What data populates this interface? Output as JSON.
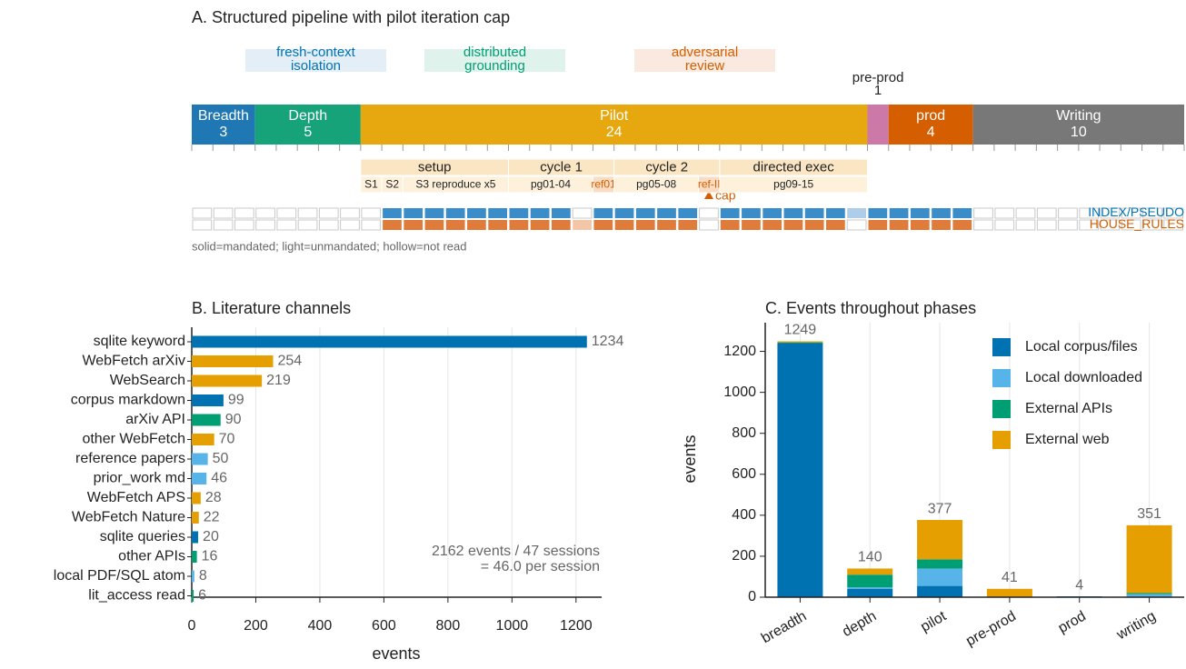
{
  "chart_data": [
    {
      "type": "timeline",
      "title": "A. Structured pipeline with pilot iteration cap",
      "annotations": [
        {
          "lines": [
            "fresh-context",
            "isolation"
          ],
          "color": "#0072b2",
          "fill": "#e3eef6"
        },
        {
          "lines": [
            "distributed",
            "grounding"
          ],
          "color": "#009e73",
          "fill": "#e0f2ec"
        },
        {
          "lines": [
            "adversarial",
            "review"
          ],
          "color": "#d55e00",
          "fill": "#fae9df"
        }
      ],
      "phases": [
        {
          "name": "Breadth",
          "value": 3,
          "color": "#1f78b4"
        },
        {
          "name": "Depth",
          "value": 5,
          "color": "#16a37a"
        },
        {
          "name": "Pilot",
          "value": 24,
          "color": "#e6a70f"
        },
        {
          "name": "pre-prod",
          "value": 1,
          "color": "#cc79a7"
        },
        {
          "name": "prod",
          "value": 4,
          "color": "#d55e00"
        },
        {
          "name": "Writing",
          "value": 10,
          "color": "#787878"
        }
      ],
      "subphases": [
        {
          "label": "setup",
          "sessions": 7
        },
        {
          "label": "cycle 1",
          "sessions": 5
        },
        {
          "label": "cycle 2",
          "sessions": 5
        },
        {
          "label": "directed exec",
          "sessions": 7
        }
      ],
      "steps": [
        {
          "label": "S1",
          "sessions": 1
        },
        {
          "label": "S2",
          "sessions": 1
        },
        {
          "label": "S3 reproduce x5",
          "sessions": 5
        },
        {
          "label": "pg01-04",
          "sessions": 4
        },
        {
          "label": "ref01",
          "sessions": 1,
          "color": "#d55e00"
        },
        {
          "label": "pg05-08",
          "sessions": 4
        },
        {
          "label": "ref-II",
          "sessions": 1,
          "color": "#d55e00"
        },
        {
          "label": "pg09-15",
          "sessions": 7
        }
      ],
      "cap_label": "cap",
      "rows": [
        {
          "name": "INDEX/PSEUDO",
          "color": "#0072b2",
          "solid": "#3a8dc8",
          "light": "#aecde8",
          "states": [
            "hollow",
            "hollow",
            "hollow",
            "hollow",
            "hollow",
            "hollow",
            "hollow",
            "hollow",
            "hollow",
            "solid",
            "solid",
            "solid",
            "solid",
            "solid",
            "solid",
            "solid",
            "solid",
            "solid",
            "hollow",
            "solid",
            "solid",
            "solid",
            "solid",
            "solid",
            "hollow",
            "solid",
            "solid",
            "solid",
            "solid",
            "solid",
            "solid",
            "light",
            "solid",
            "solid",
            "solid",
            "solid",
            "solid",
            "hollow",
            "hollow",
            "hollow",
            "hollow",
            "hollow",
            "hollow",
            "hollow",
            "hollow",
            "hollow",
            "hollow"
          ]
        },
        {
          "name": "HOUSE_RULES",
          "color": "#d55e00",
          "solid": "#e07c3b",
          "light": "#f4c6a8",
          "states": [
            "hollow",
            "hollow",
            "hollow",
            "hollow",
            "hollow",
            "hollow",
            "hollow",
            "hollow",
            "hollow",
            "solid",
            "solid",
            "solid",
            "solid",
            "solid",
            "solid",
            "solid",
            "solid",
            "solid",
            "light",
            "solid",
            "solid",
            "solid",
            "solid",
            "solid",
            "hollow",
            "solid",
            "solid",
            "solid",
            "solid",
            "solid",
            "solid",
            "hollow",
            "solid",
            "solid",
            "solid",
            "solid",
            "solid",
            "hollow",
            "hollow",
            "hollow",
            "hollow",
            "hollow",
            "hollow",
            "hollow",
            "hollow",
            "hollow",
            "hollow"
          ]
        }
      ],
      "note": "solid=mandated; light=unmandated; hollow=not read"
    },
    {
      "type": "barh",
      "title": "B. Literature channels",
      "categories": [
        "sqlite keyword",
        "WebFetch arXiv",
        "WebSearch",
        "corpus markdown",
        "arXiv API",
        "other WebFetch",
        "reference papers",
        "prior_work md",
        "WebFetch APS",
        "WebFetch Nature",
        "sqlite queries",
        "other APIs",
        "local PDF/SQL atom",
        "lit_access read"
      ],
      "values": [
        1234,
        254,
        219,
        99,
        90,
        70,
        50,
        46,
        28,
        22,
        20,
        16,
        8,
        6
      ],
      "colors": [
        "#0072b2",
        "#e69f00",
        "#e69f00",
        "#0072b2",
        "#009e73",
        "#e69f00",
        "#56b4e9",
        "#56b4e9",
        "#e69f00",
        "#e69f00",
        "#0072b2",
        "#009e73",
        "#56b4e9",
        "#009e73"
      ],
      "xlim": [
        0,
        1280
      ],
      "xticks": [
        0,
        200,
        400,
        600,
        800,
        1000,
        1200
      ],
      "xlabel": "events",
      "grid": true,
      "annotation": [
        "2162 events / 47 sessions",
        "= 46.0 per session"
      ]
    },
    {
      "type": "stacked_bar",
      "title": "C. Events throughout phases",
      "categories": [
        "breadth",
        "depth",
        "pilot",
        "pre-prod",
        "prod",
        "writing"
      ],
      "series": [
        {
          "name": "Local corpus/files",
          "color": "#0072b2",
          "values": [
            1240,
            40,
            55,
            0,
            4,
            0
          ]
        },
        {
          "name": "Local downloaded",
          "color": "#56b4e9",
          "values": [
            0,
            8,
            85,
            0,
            0,
            15
          ]
        },
        {
          "name": "External APIs",
          "color": "#009e73",
          "values": [
            4,
            62,
            45,
            0,
            0,
            5
          ]
        },
        {
          "name": "External web",
          "color": "#e69f00",
          "values": [
            5,
            30,
            192,
            41,
            0,
            331
          ]
        }
      ],
      "totals": [
        1249,
        140,
        377,
        41,
        4,
        351
      ],
      "ylim": [
        0,
        1340
      ],
      "yticks": [
        0,
        200,
        400,
        600,
        800,
        1000,
        1200
      ],
      "ylabel": "events",
      "grid": true,
      "legend": "top-right"
    }
  ]
}
